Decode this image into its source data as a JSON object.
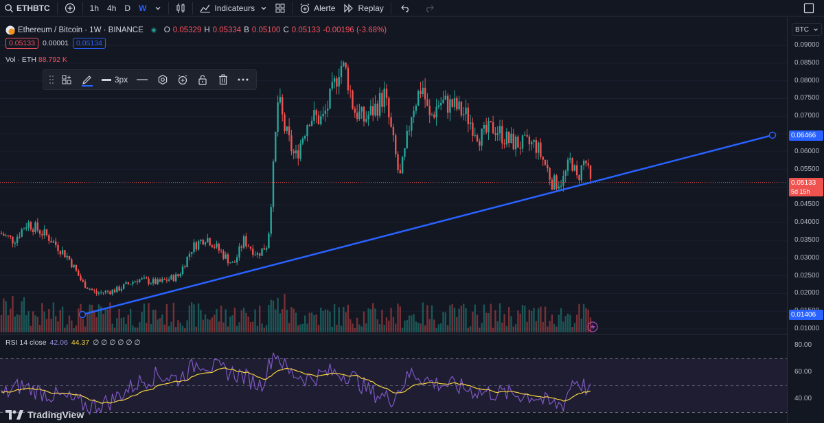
{
  "toolbar": {
    "symbol": "ETHBTC",
    "timeframes": [
      "1h",
      "4h",
      "D",
      "W"
    ],
    "active_timeframe": "W",
    "indicators_label": "Indicateurs",
    "alert_label": "Alerte",
    "replay_label": "Replay"
  },
  "legend": {
    "title": "Ethereum / Bitcoin · 1W · BINANCE",
    "o_label": "O",
    "o_value": "0.05329",
    "h_label": "H",
    "h_value": "0.05334",
    "b_label": "B",
    "b_value": "0.05100",
    "c_label": "C",
    "c_value": "0.05133",
    "change": "-0.00196 (-3.68%)",
    "bid": "0.05133",
    "spread": "0.00001",
    "ask": "0.05134"
  },
  "volume": {
    "label": "Vol · ETH",
    "value": "88.792 K"
  },
  "drawing_toolbar": {
    "width_label": "3px"
  },
  "price_axis": {
    "currency": "BTC",
    "ticks": [
      "0.09000",
      "0.08500",
      "0.08000",
      "0.07500",
      "0.07000",
      "0.06000",
      "0.05500",
      "0.04500",
      "0.04000",
      "0.03500",
      "0.03000",
      "0.02500",
      "0.02000",
      "0.01500",
      "0.01000"
    ],
    "trendline_end": "0.06466",
    "last_price": "0.05133",
    "countdown": "5d 15h",
    "trendline_start": "0.01406"
  },
  "rsi": {
    "label": "RSI 14 close",
    "value1": "42.06",
    "value2": "44.37",
    "extras": "∅ ∅ ∅ ∅ ∅ ∅",
    "ticks": [
      "80.00",
      "60.00",
      "40.00"
    ]
  },
  "brand": "TradingView",
  "colors": {
    "up": "#26a69a",
    "down": "#ef5350",
    "trend": "#2962ff",
    "rsi": "#7e57c2",
    "rsi_ma": "#f5d142",
    "bg": "#131722"
  }
}
